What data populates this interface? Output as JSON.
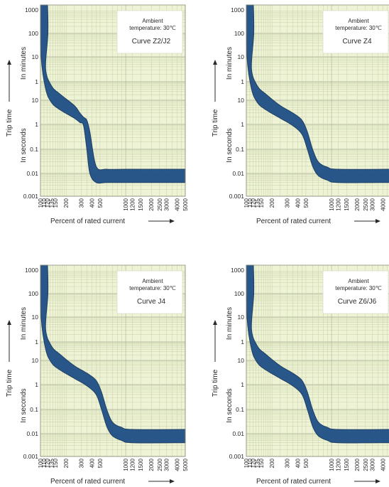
{
  "colors": {
    "band_fill": "#1f4f86",
    "band_stroke": "#15375f",
    "grid_bg": "#eef3d6",
    "grid_line": "#c8d0a8",
    "grid_line_alt": "#9fa58a",
    "text": "#2a2a2a"
  },
  "common": {
    "ylabel_main": "Trip time",
    "ylabel_minutes": "In minutes",
    "ylabel_seconds": "In seconds",
    "xlabel": "Percent of rated current",
    "ambient_line1": "Ambient",
    "ambient_line2": "temperature: 30℃",
    "y_ticks_minutes": [
      "1000",
      "100",
      "10",
      "1"
    ],
    "y_ticks_seconds": [
      "10",
      "1",
      "0.1",
      "0.01",
      "0.001"
    ],
    "x_ticks": [
      "100",
      "110",
      "120",
      "135",
      "150",
      "200",
      "300",
      "400",
      "500",
      "1000",
      "1200",
      "1500",
      "2000",
      "2500",
      "3000",
      "4000",
      "5000"
    ]
  },
  "chart_data": [
    {
      "type": "area",
      "curve": "Curve Z2/J2",
      "x_scale": "log",
      "y_scale": "log (two ranges: minutes 1-1000, seconds 0.001-10)",
      "xlim": [
        100,
        5000
      ],
      "band": {
        "x_percent": [
          100,
          105,
          115,
          135,
          170,
          250,
          290,
          320,
          350,
          380,
          450,
          600,
          1000,
          5000
        ],
        "upper_time_s": [
          60000,
          6000,
          200,
          40,
          18,
          6,
          3,
          2,
          1.5,
          0.5,
          0.02,
          0.015,
          0.015,
          0.015
        ],
        "lower_time_s": [
          60000,
          600,
          30,
          8,
          4,
          1.8,
          1.2,
          0.9,
          0.1,
          0.01,
          0.004,
          0.004,
          0.004,
          0.004
        ]
      }
    },
    {
      "type": "area",
      "curve": "Curve Z4",
      "x_scale": "log",
      "y_scale": "log (two ranges: minutes 1-1000, seconds 0.001-10)",
      "xlim": [
        100,
        5000
      ],
      "band": {
        "x_percent": [
          100,
          105,
          115,
          135,
          170,
          250,
          350,
          450,
          520,
          600,
          700,
          900,
          1200,
          5000
        ],
        "upper_time_s": [
          60000,
          6000,
          200,
          40,
          18,
          6,
          3,
          1.5,
          0.5,
          0.1,
          0.03,
          0.018,
          0.015,
          0.015
        ],
        "lower_time_s": [
          60000,
          600,
          30,
          8,
          4,
          1.8,
          0.9,
          0.4,
          0.1,
          0.02,
          0.008,
          0.005,
          0.004,
          0.004
        ]
      }
    },
    {
      "type": "area",
      "curve": "Curve J4",
      "x_scale": "log",
      "y_scale": "log (two ranges: minutes 1-1000, seconds 0.001-10)",
      "xlim": [
        100,
        5000
      ],
      "band": {
        "x_percent": [
          100,
          105,
          115,
          135,
          170,
          250,
          350,
          450,
          520,
          600,
          700,
          900,
          1200,
          5000
        ],
        "upper_time_s": [
          60000,
          6000,
          200,
          40,
          18,
          6,
          3,
          1.5,
          0.5,
          0.1,
          0.03,
          0.018,
          0.015,
          0.015
        ],
        "lower_time_s": [
          60000,
          600,
          30,
          8,
          4,
          1.8,
          0.9,
          0.4,
          0.1,
          0.02,
          0.008,
          0.005,
          0.004,
          0.004
        ]
      }
    },
    {
      "type": "area",
      "curve": "Curve Z6/J6",
      "x_scale": "log",
      "y_scale": "log (two ranges: minutes 1-1000, seconds 0.001-10)",
      "xlim": [
        100,
        5000
      ],
      "band": {
        "x_percent": [
          100,
          105,
          115,
          135,
          170,
          250,
          350,
          450,
          520,
          600,
          700,
          900,
          1200,
          5000
        ],
        "upper_time_s": [
          60000,
          6000,
          200,
          40,
          18,
          6,
          3,
          1.5,
          0.5,
          0.1,
          0.03,
          0.018,
          0.015,
          0.015
        ],
        "lower_time_s": [
          60000,
          600,
          30,
          8,
          4,
          1.8,
          0.9,
          0.4,
          0.1,
          0.02,
          0.008,
          0.005,
          0.004,
          0.004
        ]
      }
    }
  ]
}
